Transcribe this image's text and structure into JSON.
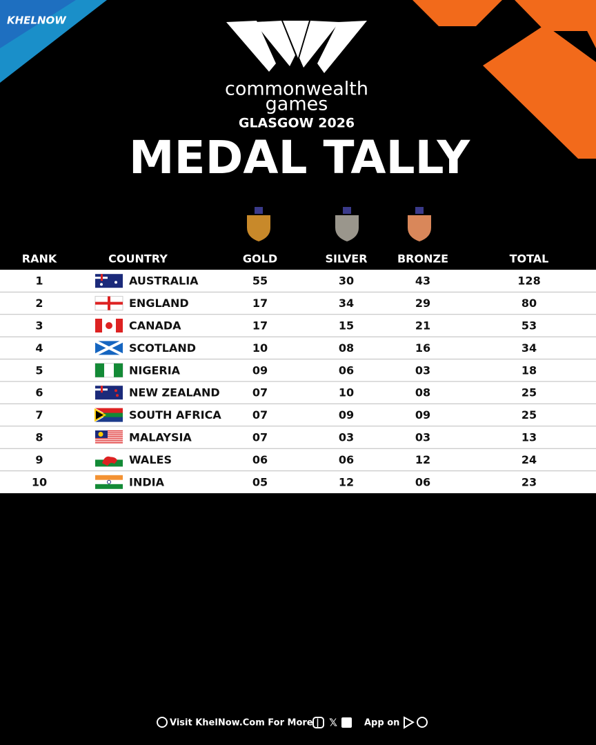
{
  "brand": "KHELNOW",
  "event": {
    "line1": "commonwealth",
    "line2": "games",
    "edition": "GLASGOW 2026"
  },
  "title": "MEDAL TALLY",
  "table": {
    "columns": [
      "RANK",
      "COUNTRY",
      "GOLD",
      "SILVER",
      "BRONZE",
      "TOTAL"
    ],
    "rows": [
      [
        "1",
        "AUSTRALIA",
        "55",
        "30",
        "43",
        "128"
      ],
      [
        "2",
        "ENGLAND",
        "17",
        "34",
        "29",
        "80"
      ],
      [
        "3",
        "CANADA",
        "17",
        "15",
        "21",
        "53"
      ],
      [
        "4",
        "SCOTLAND",
        "10",
        "08",
        "16",
        "34"
      ],
      [
        "5",
        "NIGERIA",
        "09",
        "06",
        "03",
        "18"
      ],
      [
        "6",
        "NEW ZEALAND",
        "07",
        "10",
        "08",
        "25"
      ],
      [
        "7",
        "SOUTH AFRICA",
        "07",
        "09",
        "09",
        "25"
      ],
      [
        "8",
        "MALAYSIA",
        "07",
        "03",
        "03",
        "13"
      ],
      [
        "9",
        "WALES",
        "06",
        "06",
        "12",
        "24"
      ],
      [
        "10",
        "INDIA",
        "05",
        "12",
        "06",
        "23"
      ]
    ]
  },
  "footer": {
    "visit": "Visit KhelNow.Com For More |",
    "app": "App on |"
  }
}
